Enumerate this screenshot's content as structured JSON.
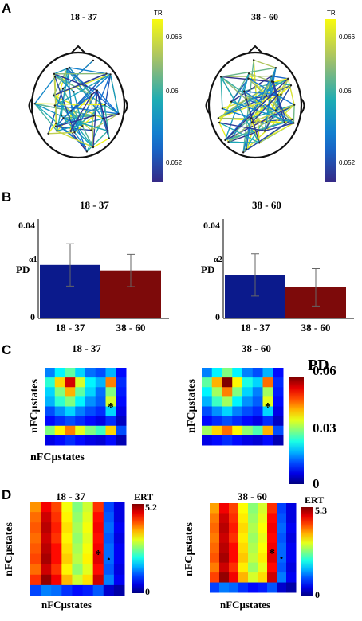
{
  "panels": {
    "A": {
      "label": "A",
      "cbar_title": "TR",
      "cbar_ticks": [
        "0.066",
        "0.06",
        "0.052"
      ],
      "cbar_tick_values": [
        0.066,
        0.06,
        0.052
      ],
      "cbar_range": [
        0.05,
        0.068
      ],
      "groups": [
        "18 - 37",
        "38 - 60"
      ]
    },
    "B": {
      "label": "B",
      "groups": [
        "18 - 37",
        "38 - 60"
      ]
    },
    "C": {
      "label": "C",
      "groups": [
        "18 - 37",
        "38 - 60"
      ],
      "xlabel": "nFCμstates",
      "ylabel": "nFCμstates",
      "star": "*",
      "cbar_title": "PD",
      "cbar_ticks": [
        "0.06",
        "0.03",
        "0"
      ]
    },
    "D": {
      "label": "D",
      "groups": [
        "18 - 37",
        "38 - 60"
      ],
      "xlabel": "nFCμstates",
      "ylabel": "nFCμstates",
      "star": "*",
      "cbar_title": "ERT",
      "left_cbar_ticks": [
        "5.2",
        "0"
      ],
      "right_cbar_ticks": [
        "5.3",
        "0"
      ]
    }
  },
  "chart_data": [
    {
      "type": "bar",
      "panel": "B-left",
      "title": "18 - 37",
      "ylabel": "PD",
      "ylabel_sub": "α1",
      "categories": [
        "18 - 37",
        "38 - 60"
      ],
      "values": [
        0.0215,
        0.0193
      ],
      "errors": [
        0.0085,
        0.0065
      ],
      "colors": [
        "#0b1a8c",
        "#7d0a0a"
      ],
      "ylim": [
        0,
        0.04
      ],
      "yticks": [
        "0",
        "0.04"
      ]
    },
    {
      "type": "bar",
      "panel": "B-right",
      "title": "38 - 60",
      "ylabel": "PD",
      "ylabel_sub": "α2",
      "categories": [
        "18 - 37",
        "38 - 60"
      ],
      "values": [
        0.0175,
        0.0125
      ],
      "errors": [
        0.0085,
        0.0075
      ],
      "colors": [
        "#0b1a8c",
        "#7d0a0a"
      ],
      "ylim": [
        0,
        0.04
      ],
      "yticks": [
        "0",
        "0.04"
      ]
    },
    {
      "type": "heatmap",
      "panel": "C-left",
      "title": "18 - 37",
      "scale_max": 0.06,
      "values": [
        [
          0.015,
          0.022,
          0.028,
          0.02,
          0.014,
          0.012,
          0.018,
          0.008
        ],
        [
          0.025,
          0.04,
          0.055,
          0.035,
          0.022,
          0.018,
          0.045,
          0.01
        ],
        [
          0.02,
          0.03,
          0.042,
          0.028,
          0.02,
          0.014,
          0.03,
          0.009
        ],
        [
          0.018,
          0.025,
          0.03,
          0.022,
          0.016,
          0.013,
          0.035,
          0.008
        ],
        [
          0.012,
          0.016,
          0.02,
          0.015,
          0.012,
          0.01,
          0.02,
          0.006
        ],
        [
          0.008,
          0.01,
          0.012,
          0.01,
          0.008,
          0.006,
          0.01,
          0.004
        ],
        [
          0.03,
          0.038,
          0.045,
          0.036,
          0.03,
          0.026,
          0.04,
          0.012
        ],
        [
          0.006,
          0.008,
          0.01,
          0.008,
          0.006,
          0.005,
          0.008,
          0.003
        ]
      ],
      "star_cell": [
        3,
        6
      ]
    },
    {
      "type": "heatmap",
      "panel": "C-right",
      "title": "38 - 60",
      "scale_max": 0.06,
      "values": [
        [
          0.015,
          0.022,
          0.03,
          0.022,
          0.015,
          0.012,
          0.018,
          0.008
        ],
        [
          0.028,
          0.042,
          0.065,
          0.038,
          0.024,
          0.02,
          0.046,
          0.01
        ],
        [
          0.022,
          0.032,
          0.045,
          0.03,
          0.02,
          0.015,
          0.032,
          0.009
        ],
        [
          0.018,
          0.026,
          0.032,
          0.022,
          0.016,
          0.013,
          0.036,
          0.008
        ],
        [
          0.012,
          0.016,
          0.02,
          0.015,
          0.012,
          0.01,
          0.02,
          0.006
        ],
        [
          0.008,
          0.01,
          0.012,
          0.01,
          0.008,
          0.006,
          0.01,
          0.004
        ],
        [
          0.032,
          0.04,
          0.046,
          0.038,
          0.031,
          0.027,
          0.042,
          0.012
        ],
        [
          0.006,
          0.008,
          0.01,
          0.008,
          0.006,
          0.005,
          0.008,
          0.003
        ]
      ],
      "star_cell": [
        3,
        6
      ]
    },
    {
      "type": "heatmap",
      "panel": "D-left",
      "title": "18 - 37",
      "scale_max": 5.2,
      "values": [
        [
          3.8,
          4.6,
          4.2,
          3.2,
          2.6,
          3.0,
          4.3,
          1.0,
          0.5
        ],
        [
          4.0,
          4.8,
          4.3,
          3.3,
          2.7,
          3.1,
          4.5,
          1.1,
          0.5
        ],
        [
          4.1,
          4.9,
          4.4,
          3.4,
          2.8,
          3.2,
          4.6,
          1.2,
          0.6
        ],
        [
          4.0,
          4.8,
          4.3,
          3.3,
          2.7,
          3.1,
          4.5,
          1.1,
          0.5
        ],
        [
          4.1,
          4.9,
          4.5,
          3.4,
          2.8,
          3.2,
          4.6,
          1.2,
          0.6
        ],
        [
          4.2,
          5.0,
          4.5,
          3.5,
          2.9,
          3.3,
          4.7,
          1.2,
          0.6
        ],
        [
          4.0,
          4.8,
          4.3,
          3.3,
          2.7,
          3.1,
          4.5,
          1.1,
          0.5
        ],
        [
          4.3,
          5.1,
          4.6,
          3.6,
          3.0,
          3.4,
          4.8,
          1.3,
          0.6
        ],
        [
          1.0,
          1.3,
          1.2,
          0.9,
          0.7,
          0.8,
          1.1,
          0.4,
          0.2
        ]
      ],
      "star_cell": [
        4,
        6
      ],
      "dot_cell": [
        5,
        7
      ]
    },
    {
      "type": "heatmap",
      "panel": "D-right",
      "title": "38 - 60",
      "scale_max": 5.3,
      "values": [
        [
          3.8,
          4.7,
          4.3,
          3.3,
          2.7,
          3.1,
          4.4,
          1.0,
          0.5
        ],
        [
          4.0,
          4.9,
          4.4,
          3.4,
          2.8,
          3.2,
          4.6,
          1.1,
          0.5
        ],
        [
          4.1,
          5.0,
          4.5,
          3.5,
          2.9,
          3.3,
          4.7,
          1.2,
          0.6
        ],
        [
          4.0,
          4.9,
          4.4,
          3.4,
          2.8,
          3.2,
          4.6,
          1.1,
          0.5
        ],
        [
          4.1,
          5.0,
          4.6,
          3.5,
          2.9,
          3.3,
          4.7,
          1.2,
          0.6
        ],
        [
          4.2,
          5.1,
          4.6,
          3.6,
          3.0,
          3.4,
          4.8,
          1.2,
          0.6
        ],
        [
          4.0,
          4.9,
          4.4,
          3.4,
          2.8,
          3.2,
          4.6,
          1.1,
          0.5
        ],
        [
          4.3,
          5.2,
          4.7,
          3.7,
          3.1,
          3.5,
          4.9,
          1.3,
          0.6
        ],
        [
          1.0,
          1.3,
          1.2,
          0.9,
          0.7,
          0.8,
          1.1,
          0.4,
          0.2
        ]
      ],
      "star_cell": [
        4,
        6
      ],
      "dot_cell": [
        5,
        7
      ]
    }
  ]
}
